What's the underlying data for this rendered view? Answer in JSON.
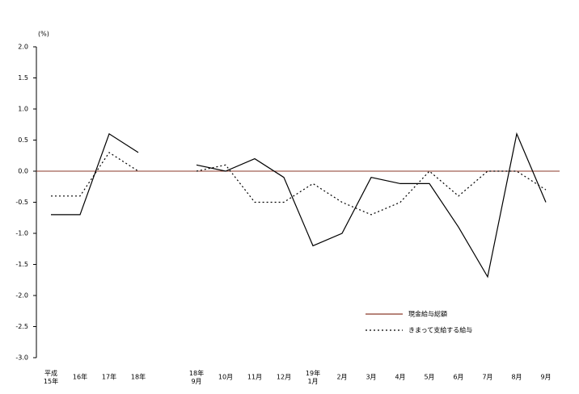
{
  "chart_data": {
    "type": "line",
    "y_label": "(%)",
    "categories": [
      "平成\n15年",
      "16年",
      "17年",
      "18年",
      null,
      "18年\n9月",
      "10月",
      "11月",
      "12月",
      "19年\n1月",
      "2月",
      "3月",
      "4月",
      "5月",
      "6月",
      "7月",
      "8月",
      "9月"
    ],
    "series": [
      {
        "name": "現金給与総額",
        "color": "#000000",
        "dash": "none",
        "values": [
          -0.7,
          -0.7,
          0.6,
          0.3,
          null,
          0.1,
          0.0,
          0.2,
          -0.1,
          -1.2,
          -1.0,
          -0.1,
          -0.2,
          -0.2,
          -0.9,
          -1.7,
          0.6,
          -0.5
        ]
      },
      {
        "name": "きまって支給する給与",
        "color": "#000000",
        "dash": "2,3",
        "values": [
          -0.4,
          -0.4,
          0.3,
          0.0,
          null,
          0.0,
          0.1,
          -0.5,
          -0.5,
          -0.2,
          -0.5,
          -0.7,
          -0.5,
          0.0,
          -0.4,
          0.0,
          0.0,
          -0.3
        ]
      }
    ],
    "ylim": [
      -3,
      2
    ],
    "yticks": [
      {
        "value": 2,
        "label": "2.0"
      },
      1.5,
      {
        "value": 1,
        "label": "1.0"
      },
      0.5,
      {
        "value": 0,
        "label": "0.0"
      },
      -0.5,
      {
        "value": -1,
        "label": "-1.0"
      },
      -1.5,
      {
        "value": -2,
        "label": "-2.0"
      },
      -2.5,
      {
        "value": -3,
        "label": "-3.0"
      }
    ],
    "zero_line_color": "#8b3a2a"
  }
}
